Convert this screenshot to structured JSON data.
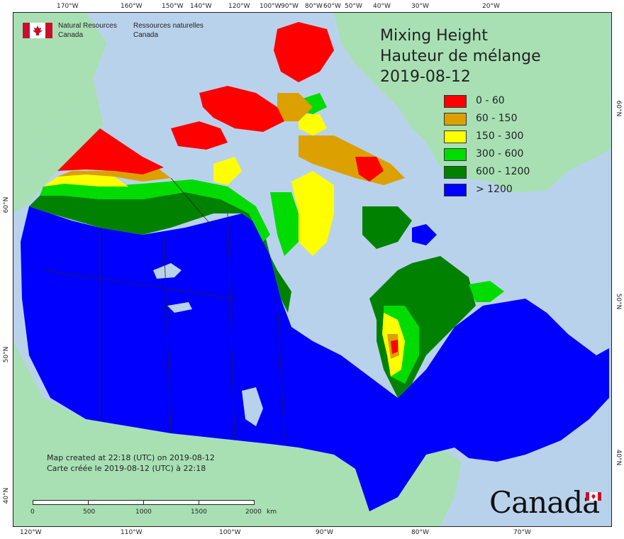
{
  "title": {
    "line1": "Mixing Height",
    "line2": "Hauteur de mélange",
    "line3": "2019-08-12"
  },
  "agency": {
    "en_line1": "Natural Resources",
    "en_line2": "Canada",
    "fr_line1": "Ressources naturelles",
    "fr_line2": "Canada"
  },
  "legend": [
    {
      "label": "0 - 60",
      "color": "#ff0000"
    },
    {
      "label": "60 - 150",
      "color": "#dca000"
    },
    {
      "label": "150 - 300",
      "color": "#ffff00"
    },
    {
      "label": "300 - 600",
      "color": "#00dc00"
    },
    {
      "label": "600 - 1200",
      "color": "#008200"
    },
    {
      "label": "> 1200",
      "color": "#0000ff"
    }
  ],
  "credit": {
    "line1": "Map created at 22:18 (UTC) on 2019-08-12",
    "line2": "Carte créée le 2019-08-12 (UTC) à 22:18"
  },
  "scale_bar": {
    "labels": [
      "0",
      "500",
      "1000",
      "1500",
      "2000",
      "km"
    ]
  },
  "wordmark": "Canada",
  "axes": {
    "top": [
      "170°W",
      "160°W",
      "150°W",
      "140°W",
      "120°W",
      "100°W",
      "90°W",
      "80°W",
      "60°W",
      "50°W",
      "40°W",
      "30°W",
      "20°W"
    ],
    "bottom": [
      "120°W",
      "110°W",
      "100°W",
      "90°W",
      "80°W",
      "70°W"
    ],
    "left": [
      "60°N",
      "50°N",
      "40°N"
    ],
    "right": [
      "60°N",
      "50°N",
      "40°N"
    ]
  },
  "colors": {
    "ocean": "#b9d2ec",
    "land_other": "#a8e0b4",
    "boundary": "#222222"
  }
}
